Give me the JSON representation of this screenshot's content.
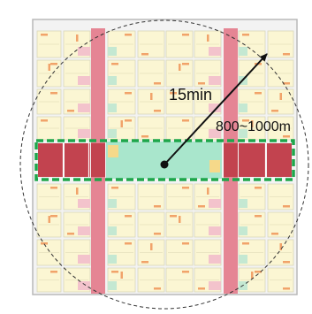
{
  "labels": {
    "time": "15min",
    "distance": "800~1000m"
  },
  "colors": {
    "background": "#ffffff",
    "outer_frame": "#b9b9b9",
    "street": "#ffffff",
    "block_fill": "#fbf6d3",
    "block_stroke": "#d9d6b8",
    "accent_pink_light": "#f3c3cc",
    "accent_mint": "#c4e8d2",
    "accent_orange": "#f1a36a",
    "corridor_pink": "#e58594",
    "corridor_dark_red": "#c2434f",
    "corridor_mint": "#a9e6cc",
    "corridor_yellow": "#f6d98a",
    "corridor_outline": "#1ea64b",
    "walk_circle": "#333333",
    "radius_line": "#111111"
  }
}
